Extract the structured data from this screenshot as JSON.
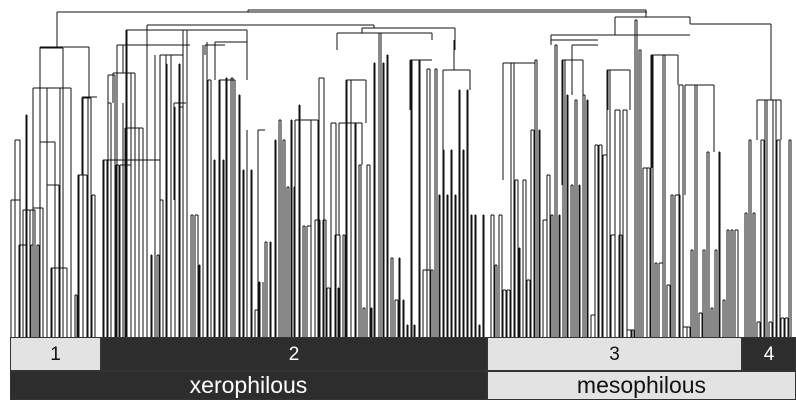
{
  "colors": {
    "light": "#e3e3e3",
    "dark": "#2d2d2d",
    "dark_text": "#ffffff",
    "light_text": "#111111",
    "lines": "#111111"
  },
  "clusters": [
    {
      "label": "1",
      "shade": "light"
    },
    {
      "label": "2",
      "shade": "dark"
    },
    {
      "label": "3",
      "shade": "light"
    },
    {
      "label": "4",
      "shade": "dark"
    }
  ],
  "groups": [
    {
      "label": "xerophilous",
      "shade": "dark"
    },
    {
      "label": "mesophilous",
      "shade": "light"
    }
  ]
}
